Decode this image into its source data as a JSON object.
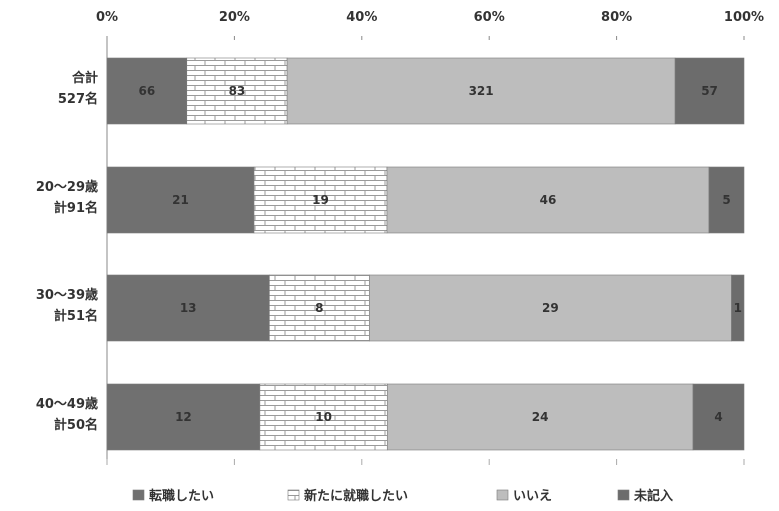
{
  "chart_data": {
    "type": "bar",
    "orientation": "horizontal",
    "stacked": "percent",
    "xlim": [
      0,
      100
    ],
    "x_ticks": [
      "0%",
      "20%",
      "40%",
      "60%",
      "80%",
      "100%"
    ],
    "categories": [
      [
        "合計",
        "527名"
      ],
      [
        "20～29歳",
        "計91名"
      ],
      [
        "30～39歳",
        "計51名"
      ],
      [
        "40～49歳",
        "計50名"
      ]
    ],
    "series": [
      {
        "name": "転職したい",
        "values": [
          66,
          21,
          13,
          12
        ],
        "color": "#707070",
        "pattern": "solid"
      },
      {
        "name": "新たに就職したい",
        "values": [
          83,
          19,
          8,
          10
        ],
        "color": "#ffffff",
        "pattern": "brick"
      },
      {
        "name": "いいえ",
        "values": [
          321,
          46,
          29,
          24
        ],
        "color": "#bdbdbd",
        "pattern": "solid"
      },
      {
        "name": "未記入",
        "values": [
          57,
          5,
          1,
          4
        ],
        "color": "#6c6c6c",
        "pattern": "solid"
      }
    ],
    "legend_position": "bottom",
    "grid": false
  }
}
